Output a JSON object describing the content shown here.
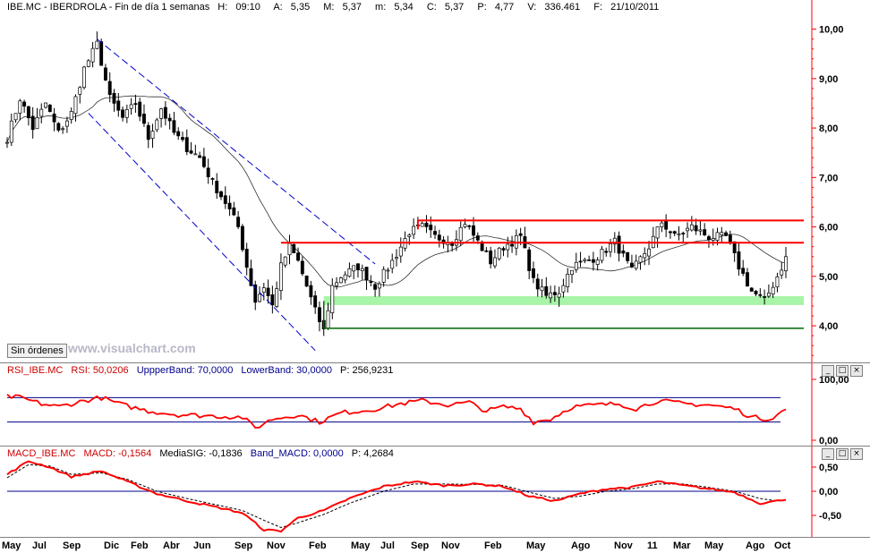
{
  "main_header": {
    "symbol": "IBE.MC - IBERDROLA - Fin de día 1 semanas",
    "h_label": "H:",
    "h": "09:10",
    "a_label": "A:",
    "a": "5,35",
    "m_label": "M:",
    "m": "5,37",
    "mi_label": "m:",
    "mi": "5,34",
    "c_label": "C:",
    "c": "5,37",
    "p_label": "P:",
    "p": "4,77",
    "v_label": "V:",
    "v": "336.461",
    "f_label": "F:",
    "f": "21/10/2011"
  },
  "sin_ordenes": "Sin órdenes",
  "watermark": "www.visualchart.com",
  "rsi_header": {
    "name": "RSI_IBE.MC",
    "rsi": "RSI: 50,0206",
    "upper": "UppperBand: 70,0000",
    "lower": "LowerBand: 30,0000",
    "p": "P: 256,9231"
  },
  "macd_header": {
    "name": "MACD_IBE.MC",
    "macd": "MACD: -0,1564",
    "sig": "MediaSIG: -0,1836",
    "band": "Band_MACD: 0,0000",
    "p": "P: 4,2684"
  },
  "controls": [
    "-",
    "_",
    "□",
    "×"
  ],
  "colors": {
    "price": "#000000",
    "trend_lines": "#0000cc",
    "resistance": "#ff0000",
    "support_zone": "#a8f4a8",
    "support_line": "#006600",
    "rsi": "#ff0000",
    "macd": "#ff0000",
    "signal": "#000000",
    "axis": "#ff0000",
    "band": "#00008b"
  },
  "chart_data": [
    {
      "type": "candlestick",
      "name": "IBE.MC",
      "y_ticks": [
        "10,00",
        "9,00",
        "8,00",
        "7,00",
        "6,00",
        "5,00",
        "4,00"
      ],
      "y_tick_values": [
        10,
        9,
        8,
        7,
        6,
        5,
        4
      ],
      "ylim": [
        3.35,
        10.3
      ],
      "x_ticks": [
        "May",
        "Jul",
        "Sep",
        "Dic",
        "Feb",
        "Abr",
        "Jun",
        "Sep",
        "Nov",
        "Feb",
        "May",
        "Jul",
        "Sep",
        "Nov",
        "Feb",
        "May",
        "Ago",
        "Nov",
        "11",
        "Mar",
        "May",
        "Ago",
        "Oct"
      ],
      "close_anchors": [
        [
          0,
          7.8
        ],
        [
          3,
          8.6
        ],
        [
          6,
          8.0
        ],
        [
          9,
          8.5
        ],
        [
          12,
          7.9
        ],
        [
          15,
          8.3
        ],
        [
          18,
          9.2
        ],
        [
          21,
          9.7
        ],
        [
          24,
          8.6
        ],
        [
          27,
          8.2
        ],
        [
          30,
          8.5
        ],
        [
          33,
          7.8
        ],
        [
          36,
          8.4
        ],
        [
          39,
          7.9
        ],
        [
          42,
          7.6
        ],
        [
          45,
          7.4
        ],
        [
          48,
          6.9
        ],
        [
          51,
          6.5
        ],
        [
          54,
          6.0
        ],
        [
          56,
          5.2
        ],
        [
          58,
          4.5
        ],
        [
          60,
          4.8
        ],
        [
          62,
          4.4
        ],
        [
          64,
          5.2
        ],
        [
          66,
          5.6
        ],
        [
          68,
          5.3
        ],
        [
          70,
          4.8
        ],
        [
          72,
          4.3
        ],
        [
          74,
          3.9
        ],
        [
          76,
          4.8
        ],
        [
          78,
          5.0
        ],
        [
          82,
          5.2
        ],
        [
          86,
          4.8
        ],
        [
          90,
          5.3
        ],
        [
          94,
          5.9
        ],
        [
          97,
          6.0
        ],
        [
          100,
          5.8
        ],
        [
          104,
          5.7
        ],
        [
          107,
          6.1
        ],
        [
          110,
          5.7
        ],
        [
          113,
          5.3
        ],
        [
          116,
          5.6
        ],
        [
          120,
          5.8
        ],
        [
          123,
          4.9
        ],
        [
          126,
          4.6
        ],
        [
          129,
          4.7
        ],
        [
          132,
          5.2
        ],
        [
          135,
          5.3
        ],
        [
          138,
          5.4
        ],
        [
          142,
          5.7
        ],
        [
          146,
          5.1
        ],
        [
          150,
          5.6
        ],
        [
          153,
          6.1
        ],
        [
          156,
          5.8
        ],
        [
          160,
          6.0
        ],
        [
          164,
          5.8
        ],
        [
          168,
          5.8
        ],
        [
          171,
          5.2
        ],
        [
          174,
          4.7
        ],
        [
          177,
          4.5
        ],
        [
          180,
          5.0
        ],
        [
          182,
          5.37
        ]
      ],
      "moving_average": "black",
      "trend_channel": [
        [
          21,
          9.8
        ],
        [
          74,
          3.9
        ]
      ],
      "resistance_levels": [
        6.13,
        5.68
      ],
      "support_zone": [
        4.42,
        4.6
      ],
      "support_level": 3.95,
      "support_zone_range": [
        74,
        182
      ],
      "resistance_range": [
        96,
        182
      ]
    },
    {
      "type": "line",
      "name": "RSI_IBE.MC",
      "y_ticks": [
        "100,00",
        "0,00"
      ],
      "y_tick_values": [
        100,
        0
      ],
      "bands": [
        70,
        30
      ],
      "rsi_anchors": [
        [
          0,
          72
        ],
        [
          3,
          70
        ],
        [
          8,
          60
        ],
        [
          12,
          55
        ],
        [
          18,
          65
        ],
        [
          22,
          70
        ],
        [
          27,
          58
        ],
        [
          33,
          48
        ],
        [
          40,
          42
        ],
        [
          48,
          40
        ],
        [
          55,
          38
        ],
        [
          58,
          20
        ],
        [
          62,
          35
        ],
        [
          68,
          42
        ],
        [
          73,
          30
        ],
        [
          78,
          45
        ],
        [
          85,
          50
        ],
        [
          92,
          60
        ],
        [
          97,
          65
        ],
        [
          103,
          58
        ],
        [
          108,
          62
        ],
        [
          112,
          48
        ],
        [
          116,
          55
        ],
        [
          120,
          52
        ],
        [
          123,
          30
        ],
        [
          127,
          35
        ],
        [
          132,
          55
        ],
        [
          138,
          58
        ],
        [
          143,
          60
        ],
        [
          147,
          52
        ],
        [
          152,
          65
        ],
        [
          158,
          60
        ],
        [
          164,
          58
        ],
        [
          170,
          52
        ],
        [
          174,
          38
        ],
        [
          178,
          35
        ],
        [
          182,
          50
        ]
      ]
    },
    {
      "type": "line",
      "name": "MACD_IBE.MC",
      "y_ticks": [
        "0,50",
        "0,00",
        "-0,50"
      ],
      "y_tick_values": [
        0.5,
        0,
        -0.5
      ],
      "zero_band": 0,
      "macd_anchors": [
        [
          0,
          0.35
        ],
        [
          5,
          0.62
        ],
        [
          10,
          0.5
        ],
        [
          15,
          0.3
        ],
        [
          22,
          0.42
        ],
        [
          28,
          0.2
        ],
        [
          35,
          -0.05
        ],
        [
          42,
          -0.2
        ],
        [
          50,
          -0.35
        ],
        [
          55,
          -0.45
        ],
        [
          60,
          -0.8
        ],
        [
          64,
          -0.82
        ],
        [
          68,
          -0.55
        ],
        [
          74,
          -0.4
        ],
        [
          80,
          -0.15
        ],
        [
          88,
          0.1
        ],
        [
          95,
          0.2
        ],
        [
          102,
          0.12
        ],
        [
          110,
          0.15
        ],
        [
          116,
          0.1
        ],
        [
          122,
          -0.1
        ],
        [
          128,
          -0.2
        ],
        [
          134,
          -0.05
        ],
        [
          140,
          0.05
        ],
        [
          146,
          0.08
        ],
        [
          152,
          0.2
        ],
        [
          158,
          0.12
        ],
        [
          164,
          0.05
        ],
        [
          170,
          -0.02
        ],
        [
          176,
          -0.25
        ],
        [
          180,
          -0.2
        ],
        [
          182,
          -0.16
        ]
      ],
      "signal_anchors": [
        [
          0,
          0.28
        ],
        [
          5,
          0.55
        ],
        [
          10,
          0.52
        ],
        [
          15,
          0.35
        ],
        [
          22,
          0.38
        ],
        [
          28,
          0.25
        ],
        [
          35,
          0.0
        ],
        [
          42,
          -0.15
        ],
        [
          50,
          -0.3
        ],
        [
          55,
          -0.4
        ],
        [
          60,
          -0.6
        ],
        [
          64,
          -0.75
        ],
        [
          68,
          -0.65
        ],
        [
          74,
          -0.48
        ],
        [
          80,
          -0.25
        ],
        [
          88,
          0.0
        ],
        [
          95,
          0.15
        ],
        [
          102,
          0.15
        ],
        [
          110,
          0.14
        ],
        [
          116,
          0.12
        ],
        [
          122,
          -0.02
        ],
        [
          128,
          -0.15
        ],
        [
          134,
          -0.1
        ],
        [
          140,
          0.0
        ],
        [
          146,
          0.05
        ],
        [
          152,
          0.15
        ],
        [
          158,
          0.15
        ],
        [
          164,
          0.08
        ],
        [
          170,
          0.0
        ],
        [
          176,
          -0.15
        ],
        [
          180,
          -0.2
        ],
        [
          182,
          -0.18
        ]
      ]
    }
  ]
}
